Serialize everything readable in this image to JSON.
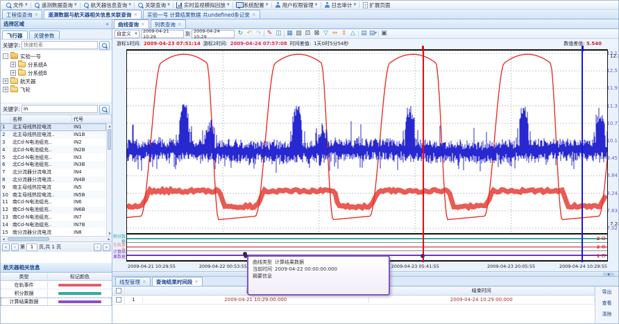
{
  "menubar": {
    "items": [
      {
        "label": "文件",
        "icon": "search",
        "arrow": true
      },
      {
        "label": "遥测数据查询",
        "icon": "search",
        "arrow": true
      },
      {
        "label": "航天器信息查询",
        "icon": "search",
        "arrow": true
      },
      {
        "label": "关联查询",
        "icon": "search",
        "arrow": true
      },
      {
        "label": "实时监视模拟回放",
        "icon": "chart",
        "arrow": true
      },
      {
        "label": "系统配置",
        "icon": "monitor",
        "arrow": true
      },
      {
        "label": "用户权限管理",
        "icon": "user",
        "arrow": true
      },
      {
        "label": "日志审计",
        "icon": "user",
        "arrow": true
      },
      {
        "label": "扩展页面",
        "icon": "page",
        "arrow": false
      }
    ]
  },
  "main_tabs": [
    {
      "label": "工程值查询",
      "active": false
    },
    {
      "label": "遥测数据与航天器相关信息关联查询",
      "active": true
    },
    {
      "label": "实验一号 计算结果数据 共undefined条记录",
      "active": false
    }
  ],
  "sidebar": {
    "title": "选择区域",
    "tabs": [
      {
        "label": "飞行器",
        "active": true
      },
      {
        "label": "关键参数",
        "active": false
      }
    ],
    "keyword_label": "关键字:",
    "search_top_placeholder": "快速检索",
    "search_bottom_value": "in",
    "tree": [
      {
        "label": "实验一号",
        "depth": 0,
        "expander": "-",
        "open": true
      },
      {
        "label": "分系统A",
        "depth": 1,
        "expander": "+",
        "open": false
      },
      {
        "label": "分系统B",
        "depth": 1,
        "expander": "+",
        "open": false
      },
      {
        "label": "航天器",
        "depth": 0,
        "expander": "+",
        "open": false
      },
      {
        "label": "飞轮",
        "depth": 0,
        "expander": "+",
        "open": false
      }
    ],
    "param_table": {
      "headers": [
        "名称",
        "代号"
      ],
      "rows": [
        [
          "北主母线热控电流",
          "IN1"
        ],
        [
          "北主母线热控电流..",
          "IN1B"
        ],
        [
          "北Cd-N电池组充..",
          "IN2"
        ],
        [
          "北Cd-N电池组充..",
          "IN2B"
        ],
        [
          "北Cd-N电池组充..",
          "IN3"
        ],
        [
          "北Cd-N电池组充..",
          "IN3B"
        ],
        [
          "北分流器分流电流",
          "IN4"
        ],
        [
          "北分流器分流电流..",
          "IN4B"
        ],
        [
          "南主母线热控电流",
          "IN5"
        ],
        [
          "南主母线热控电流..",
          "IN5B"
        ],
        [
          "南Cd-N电池组充..",
          "IN6"
        ],
        [
          "南Cd-N电池组充..",
          "IN6B"
        ],
        [
          "南Cd-N电池组充..",
          "IN7"
        ],
        [
          "南Cd-N电池组充..",
          "IN7B"
        ],
        [
          "南分流器分流电流",
          "IN8"
        ]
      ]
    },
    "pager": {
      "prefix": "第",
      "page": "1",
      "suffix": "页,共 1 页"
    },
    "info_panel": {
      "title": "航天器相关信息",
      "headers": [
        "类型",
        "标记颜色"
      ],
      "rows": [
        {
          "type": "在轨事件",
          "color": "#e0606a"
        },
        {
          "type": "积分数据",
          "color": "#2aada0"
        },
        {
          "type": "计算结果数据",
          "color": "#8a50c8"
        }
      ]
    }
  },
  "chart_panel": {
    "tabs": [
      {
        "label": "曲线查询",
        "active": true
      },
      {
        "label": "列表查询",
        "active": false
      }
    ],
    "toolbar": {
      "preset": "自定义",
      "from": "2009-04-21 10:29",
      "to_word": "到",
      "to": "2009-04-24 10:29",
      "icons": [
        {
          "name": "refresh-icon",
          "glyph": "↻",
          "color": "#2f9e44"
        },
        {
          "name": "undo-icon",
          "glyph": "↶",
          "color": "#e6a23c"
        },
        {
          "name": "redo-icon",
          "glyph": "↷",
          "color": "#b9c2cf"
        },
        {
          "name": "sep"
        },
        {
          "name": "edit-curve-icon",
          "glyph": "✎",
          "color": "#c0392b"
        },
        {
          "name": "snapshot-icon",
          "glyph": "◫",
          "color": "#4a7ab5"
        },
        {
          "name": "sep"
        },
        {
          "name": "save-image-icon",
          "glyph": "▦",
          "color": "#4a7ab5"
        },
        {
          "name": "delete-curve-icon",
          "glyph": "▨",
          "color": "#5a6472"
        },
        {
          "name": "zoom-window-icon",
          "glyph": "⊡",
          "color": "#333333"
        },
        {
          "name": "zoom-reset-icon",
          "glyph": "⊠",
          "color": "#333333"
        },
        {
          "name": "y-shrink-icon",
          "glyph": "▽",
          "color": "#18a1a1"
        },
        {
          "name": "pan-horizontal-icon",
          "glyph": "⇔",
          "color": "#e6872a"
        },
        {
          "name": "pan-vertical-icon",
          "glyph": "⇕",
          "color": "#e6872a"
        },
        {
          "name": "y-expand-icon",
          "glyph": "△",
          "color": "#18a1a1"
        },
        {
          "name": "sep"
        },
        {
          "name": "curve-style-icon",
          "glyph": "▤",
          "color": "#4a7ab5"
        },
        {
          "name": "curve-style-menu-icon",
          "glyph": "▤",
          "color": "#4a7ab5",
          "arrow": true
        },
        {
          "name": "sep"
        },
        {
          "name": "print-icon",
          "glyph": "▣",
          "color": "#5a6472"
        }
      ]
    },
    "cursor_bar": {
      "c1_label": "游标1时间:",
      "c1_value": "2009-04-23 07:51:14",
      "c2_label": "游标2时间:",
      "c2_value": "2009-04-24 07:57:08",
      "diff_label": "时间差值:",
      "diff_value": "1天0时5分54秒",
      "delta_label": "数值差值:",
      "delta_value": "5.540"
    }
  },
  "chart_data": {
    "type": "line",
    "y_ticks": [
      "13.1",
      "12.5",
      "11.9",
      "11.3",
      "10.7",
      "10.1",
      "9.45",
      "8.84",
      "8.24",
      "7.63",
      "7.02"
    ],
    "y_range": [
      7.02,
      13.1
    ],
    "x_ticks": [
      "2009-04-21 10:29:55",
      "2009-04-22 00:53:55",
      "2009-04-22 15:17:55",
      "2009-04-23 05:41:55",
      "2009-04-23 20:05:55",
      "2009-04-24 10:29:55"
    ],
    "max_label": "12.83",
    "min_label": "7.284",
    "cursor1": {
      "color": "#ff0000",
      "x_frac": 0.617
    },
    "cursor2": {
      "color": "#1414e6",
      "x_frac": 0.948
    },
    "series": [
      {
        "name": "计算结果曲线",
        "color": "#e53228",
        "kind": "trapezoid_wave",
        "period": 165,
        "center0": 82,
        "plateau_half": 33,
        "fall_end": 50,
        "low_end": 103,
        "rise_end": 132,
        "high": 12.85,
        "low": 7.32
      },
      {
        "name": "遥测参数带",
        "color": "#e53228",
        "kind": "band",
        "high": 8.32,
        "low": 7.78,
        "width": 7
      },
      {
        "name": "遥测参数",
        "color": "#1c1ccf",
        "kind": "noise",
        "base": 9.72,
        "spread": 0.3,
        "spikes": [
          [
            82,
            11.5
          ],
          [
            120,
            10.9
          ],
          [
            245,
            11.4
          ],
          [
            282,
            10.8
          ],
          [
            408,
            11.4
          ],
          [
            572,
            11.4
          ],
          [
            682,
            11.3
          ]
        ]
      }
    ],
    "strips": [
      {
        "label": "积分数据",
        "color": "#2aada0",
        "count": "2"
      },
      {
        "label": "在轨事件",
        "color": "#e8808a",
        "count": "2"
      },
      {
        "label": "计算结果数据",
        "color": "#7b2fbf",
        "count": "1"
      }
    ]
  },
  "tooltip": {
    "rows": [
      {
        "label": "曲线类型",
        "value": "计算结果数据"
      },
      {
        "label": "当前时间",
        "value": "2009-04-22 00:00:00.000"
      },
      {
        "label": "摘要信息",
        "value": ""
      }
    ]
  },
  "bottom_panel": {
    "tabs": [
      {
        "label": "线型管理",
        "active": false
      },
      {
        "label": "查询结果时间段",
        "active": true
      }
    ],
    "headers": {
      "start": "开始时间",
      "end": "结束时间"
    },
    "rows": [
      {
        "num": "1",
        "start": "2009-04-21 10:29:00.000",
        "end": "2009-04-24 10:29:00.000"
      }
    ],
    "actions": [
      "导出",
      "查看",
      "清除"
    ]
  }
}
